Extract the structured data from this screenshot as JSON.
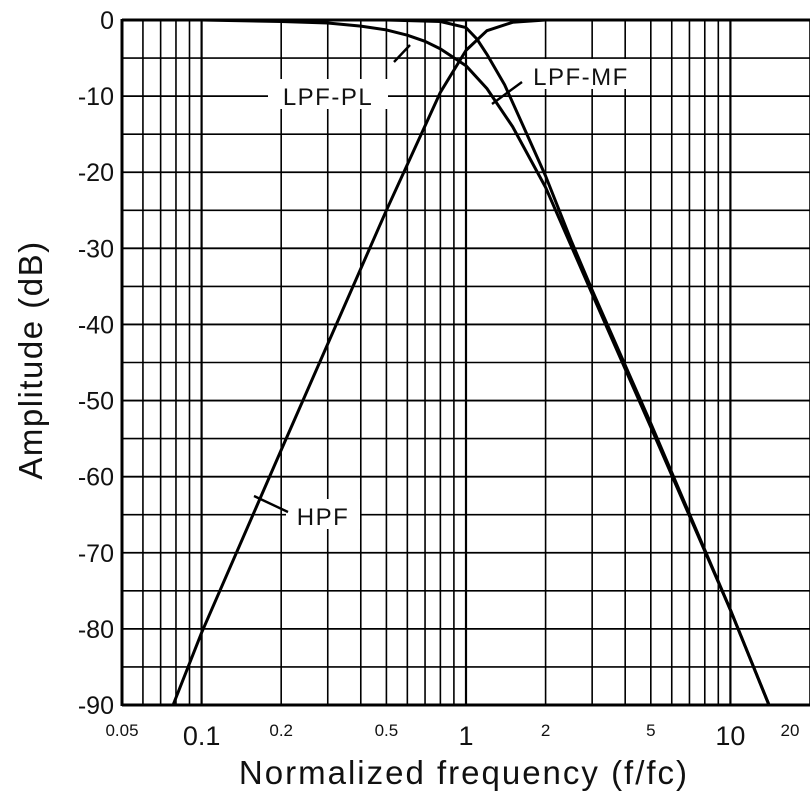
{
  "chart_data": {
    "type": "line",
    "xlabel": "Normalized frequency  (f/fc)",
    "ylabel": "Amplitude  (dB)",
    "xscale": "log",
    "xlim": [
      0.05,
      20
    ],
    "ylim": [
      -90,
      0
    ],
    "grid": true,
    "x_ticks_major": [
      {
        "value": 0.05,
        "label": "0.05",
        "size": "small"
      },
      {
        "value": 0.1,
        "label": "0.1",
        "size": "large"
      },
      {
        "value": 0.2,
        "label": "0.2",
        "size": "small"
      },
      {
        "value": 0.5,
        "label": "0.5",
        "size": "small"
      },
      {
        "value": 1,
        "label": "1",
        "size": "large"
      },
      {
        "value": 2,
        "label": "2",
        "size": "small"
      },
      {
        "value": 5,
        "label": "5",
        "size": "small"
      },
      {
        "value": 10,
        "label": "10",
        "size": "large"
      },
      {
        "value": 20,
        "label": "20",
        "size": "small"
      }
    ],
    "y_ticks": [
      {
        "value": 0,
        "label": "0"
      },
      {
        "value": -10,
        "label": "-10"
      },
      {
        "value": -20,
        "label": "-20"
      },
      {
        "value": -30,
        "label": "-30"
      },
      {
        "value": -40,
        "label": "-40"
      },
      {
        "value": -50,
        "label": "-50"
      },
      {
        "value": -60,
        "label": "-60"
      },
      {
        "value": -70,
        "label": "-70"
      },
      {
        "value": -80,
        "label": "-80"
      },
      {
        "value": -90,
        "label": "-90"
      }
    ],
    "series": [
      {
        "name": "LPF-PL",
        "x": [
          0.1,
          0.2,
          0.3,
          0.4,
          0.5,
          0.6,
          0.7,
          0.8,
          1.0,
          1.2,
          1.5,
          2.0,
          3.0,
          5.0,
          10.0,
          14.0
        ],
        "y": [
          0,
          -0.2,
          -0.4,
          -0.8,
          -1.3,
          -2.0,
          -2.8,
          -3.8,
          -6.0,
          -9.0,
          -14.0,
          -22.0,
          -36.0,
          -53.5,
          -77.5,
          -90
        ]
      },
      {
        "name": "LPF-MF",
        "x": [
          0.1,
          0.5,
          0.8,
          1.0,
          1.1,
          1.2,
          1.4,
          1.7,
          2.0,
          2.5,
          3.0,
          5.0,
          10.0,
          14.0
        ],
        "y": [
          0,
          0,
          -0.2,
          -1.0,
          -2.5,
          -4.5,
          -8.5,
          -15.0,
          -20.5,
          -29.0,
          -35.5,
          -53.0,
          -77.5,
          -90
        ]
      },
      {
        "name": "HPF",
        "x": [
          0.078,
          0.1,
          0.2,
          0.5,
          0.8,
          1.0,
          1.2,
          1.5,
          2.0,
          5.0,
          10.0,
          20.0
        ],
        "y": [
          -90,
          -80.5,
          -56.5,
          -25.0,
          -9.5,
          -4.0,
          -1.4,
          -0.3,
          0,
          0,
          0,
          0
        ]
      }
    ],
    "annotations": [
      {
        "text": "LPF-PL",
        "series": "LPF-PL"
      },
      {
        "text": "LPF-MF",
        "series": "LPF-MF"
      },
      {
        "text": "HPF",
        "series": "HPF"
      }
    ]
  }
}
